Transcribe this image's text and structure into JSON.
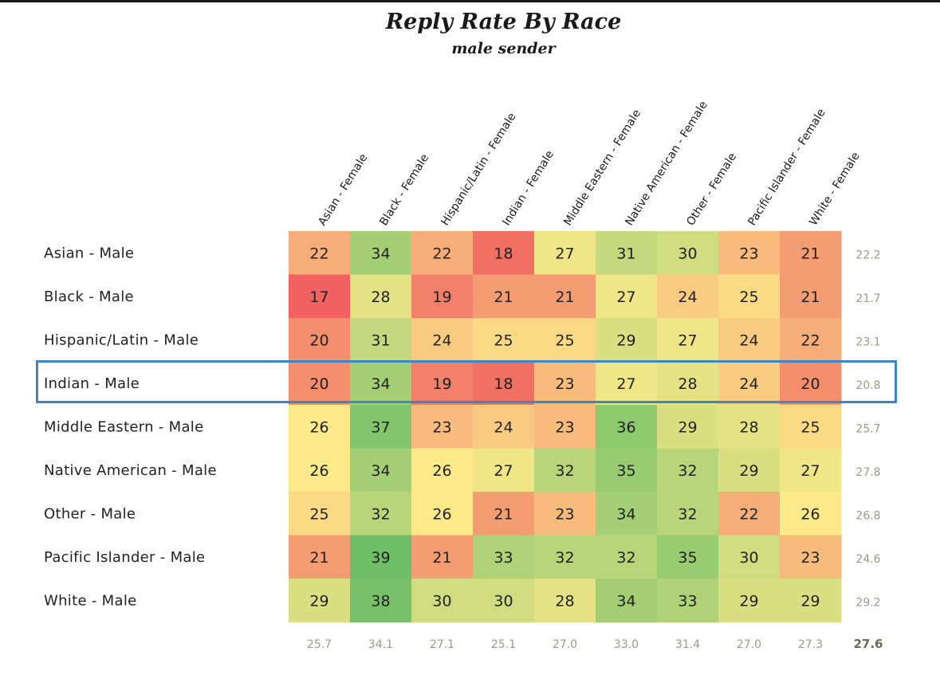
{
  "colors": {
    "low": "#f0615f",
    "mid": "#fbe98a",
    "high": "#6dbe67",
    "highlight_border": "#3b86c4",
    "average_text": "#9a9a88"
  },
  "chart_data": {
    "type": "heatmap",
    "title": "Reply Rate By Race",
    "subtitle": "male sender",
    "columns": [
      "Asian - Female",
      "Black - Female",
      "Hispanic/Latin - Female",
      "Indian - Female",
      "Middle Eastern - Female",
      "Native American - Female",
      "Other - Female",
      "Pacific Islander - Female",
      "White - Female"
    ],
    "rows": [
      "Asian - Male",
      "Black - Male",
      "Hispanic/Latin - Male",
      "Indian - Male",
      "Middle Eastern - Male",
      "Native American - Male",
      "Other - Male",
      "Pacific Islander - Male",
      "White - Male"
    ],
    "values": [
      [
        22,
        34,
        22,
        18,
        27,
        31,
        30,
        23,
        21
      ],
      [
        17,
        28,
        19,
        21,
        21,
        27,
        24,
        25,
        21
      ],
      [
        20,
        31,
        24,
        25,
        25,
        29,
        27,
        24,
        22
      ],
      [
        20,
        34,
        19,
        18,
        23,
        27,
        28,
        24,
        20
      ],
      [
        26,
        37,
        23,
        24,
        23,
        36,
        29,
        28,
        25
      ],
      [
        26,
        34,
        26,
        27,
        32,
        35,
        32,
        29,
        27
      ],
      [
        25,
        32,
        26,
        21,
        23,
        34,
        32,
        22,
        26
      ],
      [
        21,
        39,
        21,
        33,
        32,
        32,
        35,
        30,
        23
      ],
      [
        29,
        38,
        30,
        30,
        28,
        34,
        33,
        29,
        29
      ]
    ],
    "row_averages": [
      "22.2",
      "21.7",
      "23.1",
      "20.8",
      "25.7",
      "27.8",
      "26.8",
      "24.6",
      "29.2"
    ],
    "column_averages": [
      "25.7",
      "34.1",
      "27.1",
      "25.1",
      "27.0",
      "33.0",
      "31.4",
      "27.0",
      "27.3"
    ],
    "grand_average": "27.6",
    "highlighted_row": "Indian - Male",
    "color_scale": "red-yellow-green"
  }
}
